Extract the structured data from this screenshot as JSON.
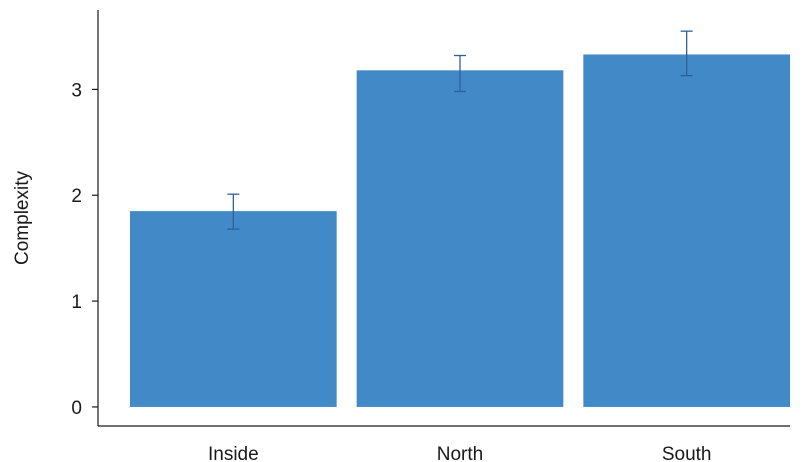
{
  "chart_data": {
    "type": "bar",
    "categories": [
      "Inside",
      "North",
      "South"
    ],
    "values": [
      1.85,
      3.18,
      3.33
    ],
    "error_low": [
      1.68,
      2.98,
      3.13
    ],
    "error_high": [
      2.01,
      3.32,
      3.55
    ],
    "title": "",
    "xlabel": "",
    "ylabel": "Complexity",
    "yticks": [
      0,
      1,
      2,
      3
    ],
    "ylim": [
      -0.18,
      3.75
    ],
    "grid": false,
    "legend": "none",
    "colors": {
      "bar": "#4289c8",
      "error_bar": "#2f5f9a",
      "axis": "#1a1a1a"
    }
  }
}
